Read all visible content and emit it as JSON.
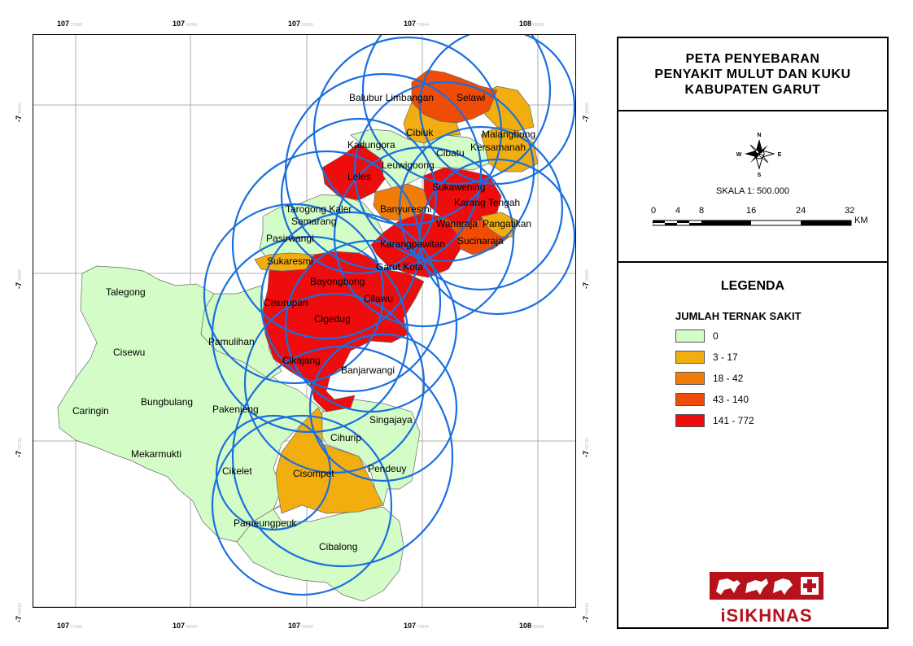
{
  "map": {
    "top_ticks": [
      {
        "major": "107",
        "minor": "°37088"
      },
      {
        "major": "107",
        "minor": "°48340"
      },
      {
        "major": "107",
        "minor": "°59592"
      },
      {
        "major": "107",
        "minor": "°70844"
      },
      {
        "major": "108",
        "minor": "°82096"
      }
    ],
    "side_ticks_left": [
      {
        "major": "-7",
        "minor": "°19440"
      },
      {
        "major": "-7",
        "minor": "°30845"
      },
      {
        "major": "-7",
        "minor": "°42730"
      },
      {
        "major": "-7",
        "minor": "°54615"
      }
    ],
    "side_ticks_right": [
      {
        "major": "-7",
        "minor": "°19440"
      },
      {
        "major": "-7",
        "minor": "°30845"
      },
      {
        "major": "-7",
        "minor": "°42730"
      },
      {
        "major": "-7",
        "minor": "°54615"
      }
    ],
    "district_labels": [
      "Balubur Limbangan",
      "Selawi",
      "Cibiuk",
      "Malangbong",
      "Kadungora",
      "Kersamanah",
      "Cibatu",
      "Leuwigoong",
      "Leles",
      "Sukawening",
      "Karang Tengah",
      "Tarogong Kaler",
      "Banyuresmi",
      "Samarang",
      "Wanaraja",
      "Pangatikan",
      "Pasirwangi",
      "Sucinaraja",
      "Karangpawitan",
      "Sukaresmi",
      "Garut Kota",
      "Talegong",
      "Bayongbong",
      "Cilawu",
      "Cisurupan",
      "Cigedug",
      "Pamulihan",
      "Cisewu",
      "Cikajang",
      "Banjarwangi",
      "Bungbulang",
      "Caringin",
      "Pakenjeng",
      "Singajaya",
      "Cihurip",
      "Mekarmukti",
      "Cikelet",
      "Cisompet",
      "Pendeuy",
      "Pameungpeuk",
      "Cibalong"
    ]
  },
  "panel": {
    "title_lines": [
      "PETA PENYEBARAN",
      "PENYAKIT MULUT DAN KUKU",
      "KABUPATEN GARUT"
    ],
    "compass": {
      "n": "N",
      "s": "S",
      "e": "E",
      "w": "W"
    },
    "scale_text": "SKALA 1: 500.000",
    "scale_numbers": [
      "0",
      "4",
      "8",
      "16",
      "24",
      "32"
    ],
    "scale_unit": "KM",
    "legend_title": "LEGENDA",
    "legend_subtitle": "JUMLAH TERNAK SAKIT",
    "legend_items": [
      {
        "label": "0",
        "color": "#d3fcc6"
      },
      {
        "label": "3 - 17",
        "color": "#f2ae0e"
      },
      {
        "label": "18 - 42",
        "color": "#f07d0a"
      },
      {
        "label": "43 - 140",
        "color": "#ef4c07"
      },
      {
        "label": "141 - 772",
        "color": "#ef0c0c"
      }
    ],
    "logo_text": "iSIKHNAS"
  },
  "colors": {
    "green": "#d3fcc6",
    "yellow": "#f2ae0e",
    "orange": "#f07d0a",
    "dark_orange": "#ef4c07",
    "red": "#ef0c0c",
    "circle": "#1a6fe0",
    "logo": "#b5121b"
  }
}
